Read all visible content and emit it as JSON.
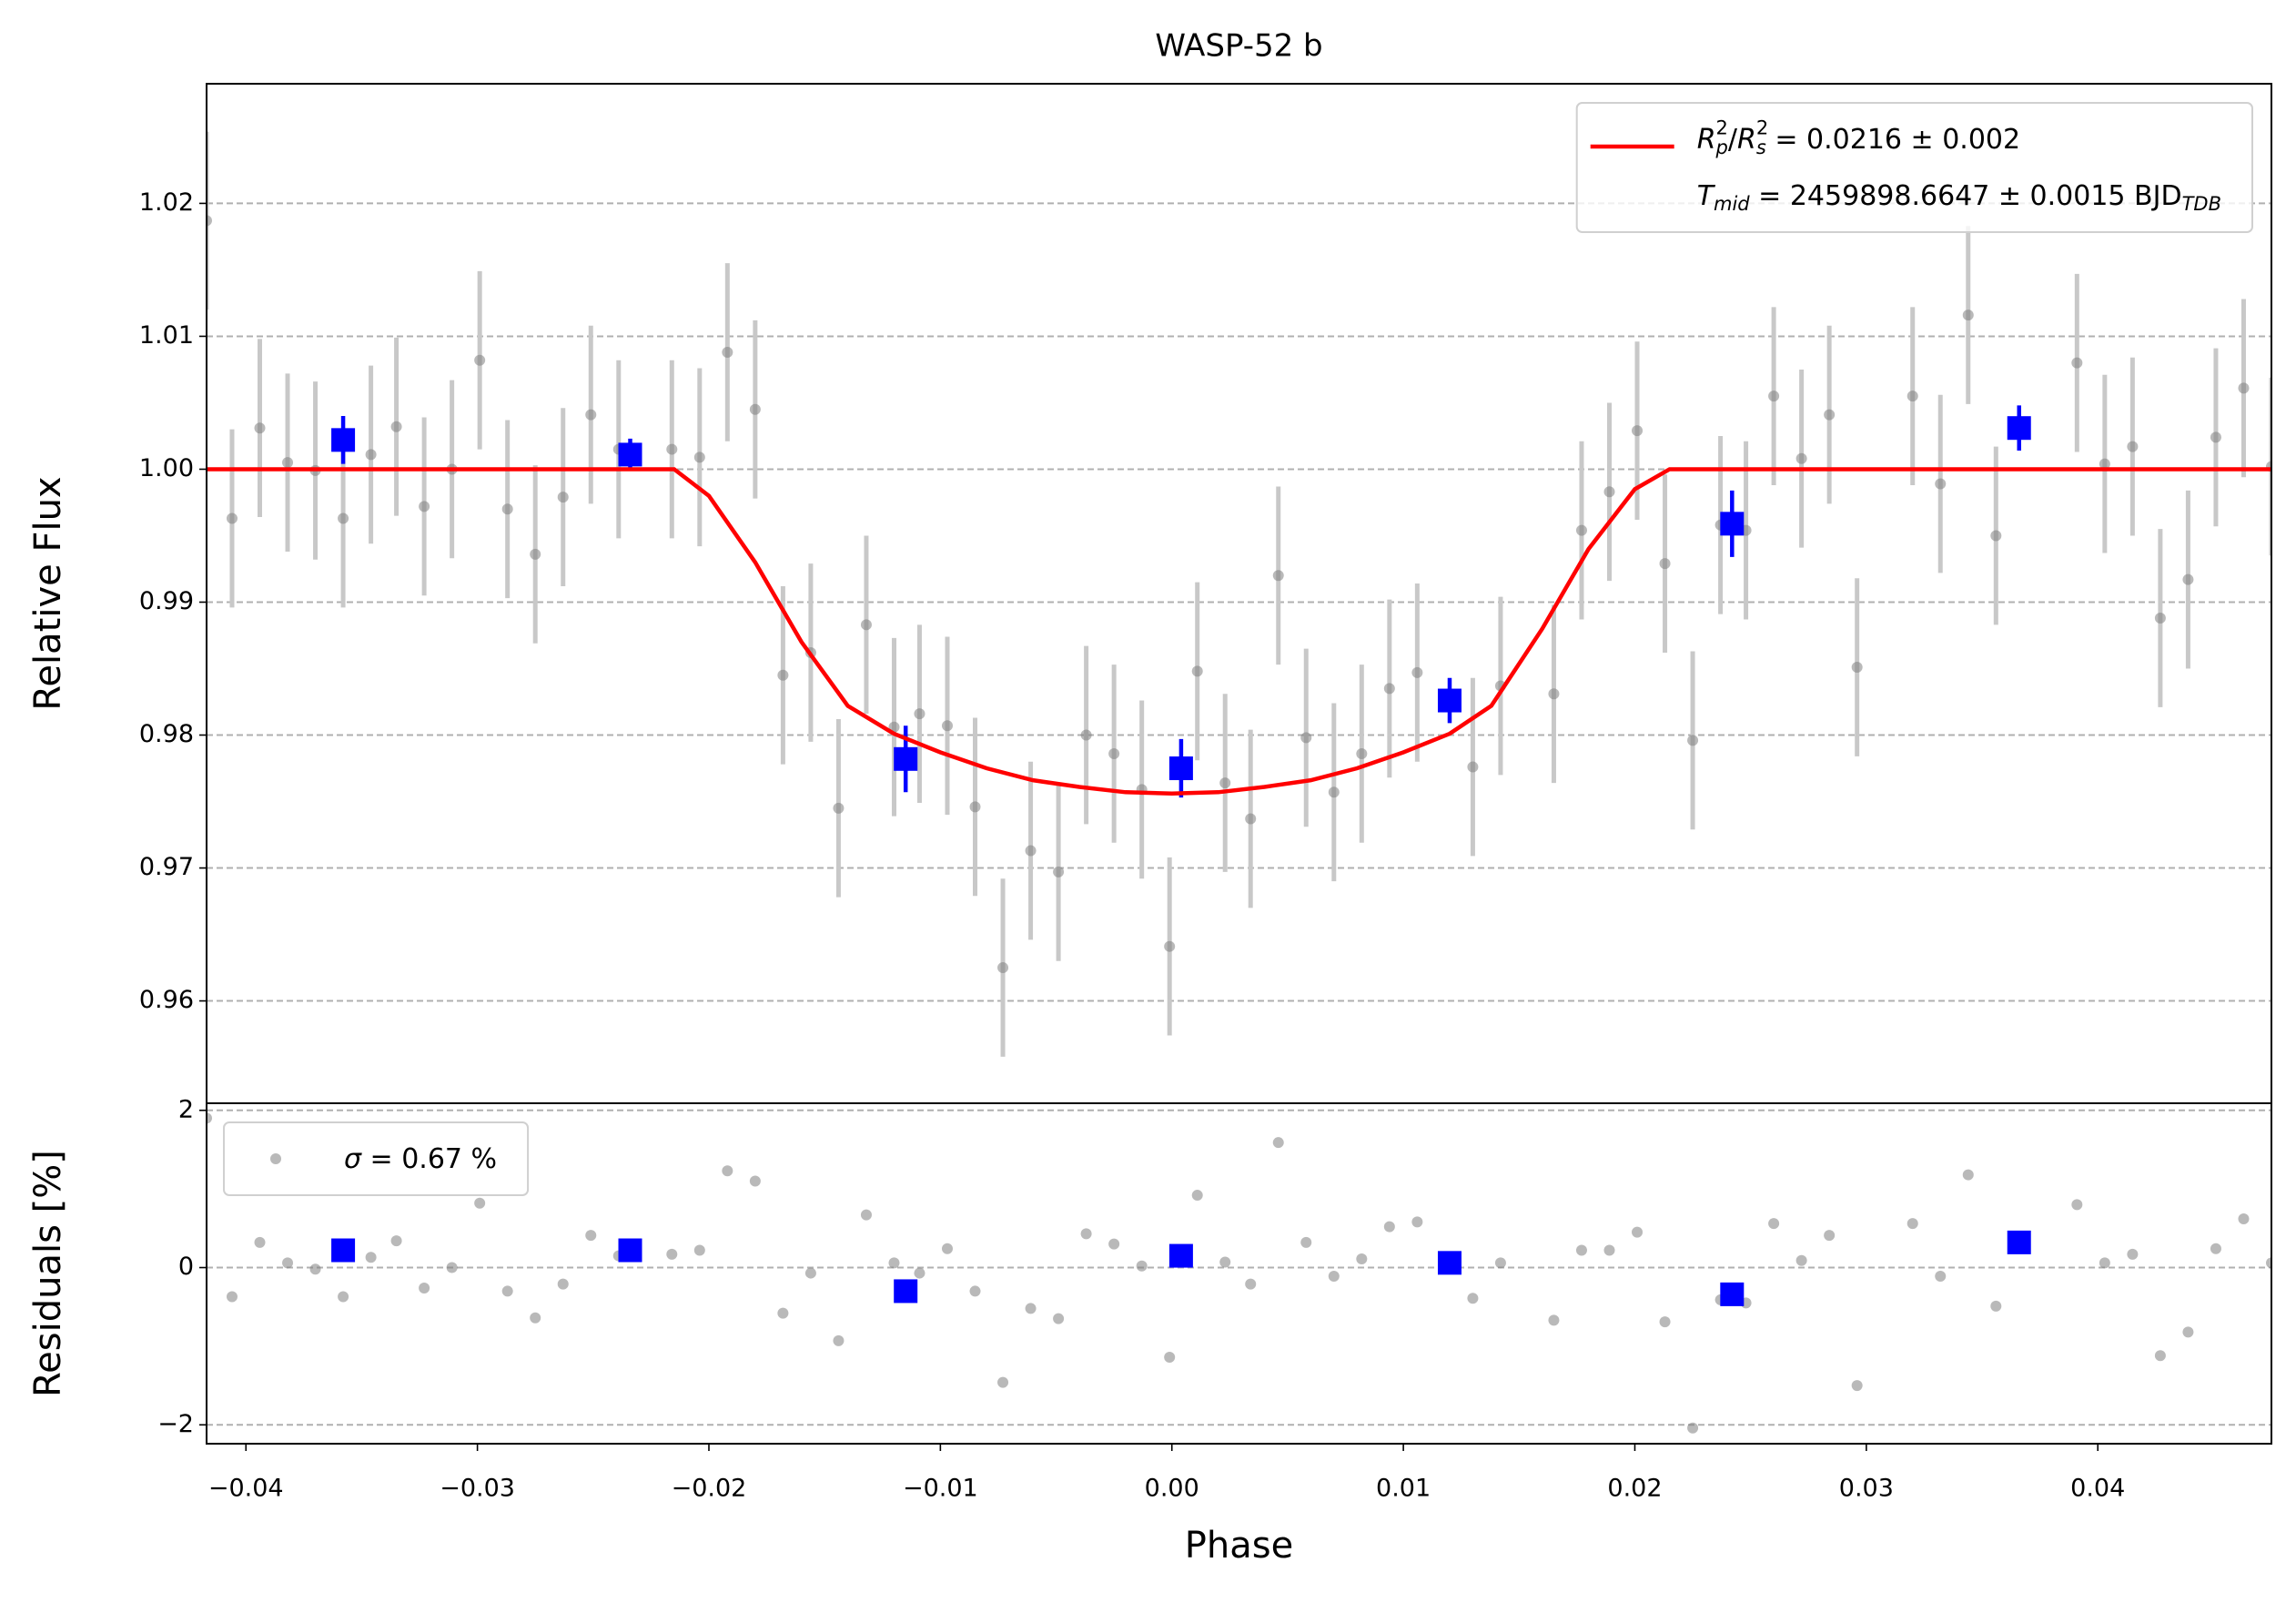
{
  "chart_data": [
    {
      "type": "scatter",
      "title": "WASP-52 b",
      "ylabel": "Relative Flux",
      "xlim": [
        -0.0417,
        0.0475
      ],
      "ylim": [
        0.9523,
        1.029
      ],
      "yticks": [
        0.96,
        0.97,
        0.98,
        0.99,
        {
          "value": 1.0,
          "label": "1.00"
        },
        1.01,
        1.02
      ],
      "grid": true,
      "legend": "upper right",
      "series": [
        {
          "type": "errorbar",
          "color": "#808080",
          "error": 0.0067,
          "x": [
            -0.0417,
            -0.0406,
            -0.0394,
            -0.0382,
            -0.037,
            -0.0358,
            -0.0346,
            -0.0335,
            -0.0323,
            -0.0311,
            -0.0299,
            -0.0287,
            -0.0275,
            -0.0263,
            -0.0251,
            -0.0239,
            -0.0216,
            -0.0204,
            -0.0192,
            -0.018,
            -0.0168,
            -0.0156,
            -0.0144,
            -0.0132,
            -0.012,
            -0.0109,
            -0.0097,
            -0.0085,
            -0.0073,
            -0.0061,
            -0.0049,
            -0.0037,
            -0.0025,
            -0.0013,
            -0.0001,
            0.0011,
            0.0023,
            0.0034,
            0.0046,
            0.0058,
            0.007,
            0.0082,
            0.0094,
            0.0106,
            0.013,
            0.0142,
            0.0165,
            0.0177,
            0.0189,
            0.0201,
            0.0213,
            0.0225,
            0.0237,
            0.0248,
            0.026,
            0.0272,
            0.0284,
            0.0296,
            0.032,
            0.0332,
            0.0344,
            0.0356,
            0.0391,
            0.0403,
            0.0415,
            0.0427,
            0.0439,
            0.0451,
            0.0463,
            0.0475
          ],
          "values": [
            1.0187,
            0.9963,
            1.0031,
            1.0005,
            0.9999,
            0.9963,
            1.0011,
            1.0032,
            0.9972,
            1.0,
            1.0082,
            0.997,
            0.9936,
            0.9979,
            1.0041,
            1.0015,
            1.0015,
            1.0009,
            1.0088,
            1.0045,
            0.9845,
            0.9862,
            0.9745,
            0.9883,
            0.9806,
            0.9816,
            0.9807,
            0.9746,
            0.9625,
            0.9713,
            0.9697,
            0.98,
            0.9786,
            0.9759,
            0.9641,
            0.9848,
            0.9764,
            0.9737,
            0.992,
            0.9798,
            0.9757,
            0.9786,
            0.9835,
            0.9847,
            0.9776,
            0.9837,
            0.9831,
            0.9954,
            0.9983,
            1.0029,
            0.9929,
            0.9796,
            0.9958,
            0.9954,
            1.0055,
            1.0008,
            1.0041,
            0.9851,
            1.0055,
            0.9989,
            1.0116,
            0.995,
            1.008,
            1.0004,
            1.0017,
            0.9888,
            0.9917,
            1.0024,
            1.0061,
            1.0002
          ]
        },
        {
          "type": "binned",
          "color": "#0000ff",
          "x": [
            -0.0358,
            -0.0234,
            -0.0115,
            0.0004,
            0.012,
            0.0242,
            0.0366
          ],
          "values": [
            1.0022,
            1.0011,
            0.9782,
            0.9775,
            0.9826,
            0.9959,
            1.0031
          ],
          "errors": [
            0.0018,
            0.0012,
            0.0025,
            0.0022,
            0.0017,
            0.0025,
            0.0017
          ]
        },
        {
          "type": "line",
          "color": "#ff0000",
          "name": [
            [
              {
                "text": "R",
                "style": "italic"
              },
              {
                "text": "2",
                "style": "sup"
              },
              {
                "text": "p",
                "style": "sub-italic"
              },
              {
                "text": "/",
                "style": "normal"
              },
              {
                "text": "R",
                "style": "italic"
              },
              {
                "text": "2",
                "style": "sup"
              },
              {
                "text": "s",
                "style": "sub-italic"
              },
              {
                "text": " = 0.0216 ± 0.002",
                "style": "normal"
              }
            ],
            [
              {
                "text": "T",
                "style": "italic"
              },
              {
                "text": "mid",
                "style": "sub-italic"
              },
              {
                "text": " = 2459898.6647 ± 0.0015 BJD",
                "style": "normal"
              },
              {
                "text": "TDB",
                "style": "sub-italic"
              }
            ]
          ],
          "x": [
            -0.0417,
            -0.0215,
            -0.02,
            -0.018,
            -0.016,
            -0.014,
            -0.012,
            -0.01,
            -0.008,
            -0.006,
            -0.004,
            -0.002,
            0.0,
            0.002,
            0.004,
            0.006,
            0.008,
            0.01,
            0.012,
            0.0138,
            0.016,
            0.018,
            0.02,
            0.0215,
            0.0475
          ],
          "values": [
            1.0,
            1.0,
            0.998,
            0.993,
            0.987,
            0.9822,
            0.9801,
            0.9787,
            0.9775,
            0.9766,
            0.9761,
            0.9757,
            0.9756,
            0.9757,
            0.9761,
            0.9766,
            0.9775,
            0.9787,
            0.9801,
            0.9822,
            0.988,
            0.994,
            0.9985,
            1.0,
            1.0
          ]
        }
      ]
    },
    {
      "type": "scatter",
      "ylabel": "Residuals [%]",
      "xlabel": "Phase",
      "xlim": [
        -0.0417,
        0.0475
      ],
      "ylim": [
        -2.24,
        2.09
      ],
      "xticks": [
        {
          "value": -0.04,
          "label": "−0.04"
        },
        {
          "value": -0.03,
          "label": "−0.03"
        },
        {
          "value": -0.02,
          "label": "−0.02"
        },
        {
          "value": -0.01,
          "label": "−0.01"
        },
        {
          "value": 0,
          "label": "0.00"
        },
        0.01,
        0.02,
        0.03,
        0.04
      ],
      "yticks": [
        {
          "value": -2,
          "label": "−2"
        },
        0,
        2
      ],
      "grid": true,
      "legend": "upper left",
      "series": [
        {
          "type": "points",
          "color": "#808080",
          "name": [
            [
              {
                "text": "σ",
                "style": "italic"
              },
              {
                "text": " = 0.67 %",
                "style": "normal"
              }
            ]
          ],
          "x": [
            -0.0417,
            -0.0406,
            -0.0394,
            -0.0382,
            -0.037,
            -0.0358,
            -0.0346,
            -0.0335,
            -0.0323,
            -0.0311,
            -0.0299,
            -0.0287,
            -0.0275,
            -0.0263,
            -0.0251,
            -0.0239,
            -0.0216,
            -0.0204,
            -0.0192,
            -0.018,
            -0.0168,
            -0.0156,
            -0.0144,
            -0.0132,
            -0.012,
            -0.0109,
            -0.0097,
            -0.0085,
            -0.0073,
            -0.0061,
            -0.0049,
            -0.0037,
            -0.0025,
            -0.0013,
            -0.0001,
            0.0011,
            0.0023,
            0.0034,
            0.0046,
            0.0058,
            0.007,
            0.0082,
            0.0094,
            0.0106,
            0.013,
            0.0142,
            0.0165,
            0.0177,
            0.0189,
            0.0201,
            0.0213,
            0.0225,
            0.0237,
            0.0248,
            0.026,
            0.0272,
            0.0284,
            0.0296,
            0.032,
            0.0332,
            0.0344,
            0.0356,
            0.0391,
            0.0403,
            0.0415,
            0.0427,
            0.0439,
            0.0451,
            0.0463,
            0.0475
          ],
          "values": [
            1.9,
            -0.37,
            0.32,
            0.06,
            -0.02,
            -0.37,
            0.13,
            0.34,
            -0.26,
            0,
            0.82,
            -0.3,
            -0.64,
            -0.21,
            0.41,
            0.15,
            0.17,
            0.22,
            1.23,
            1.1,
            -0.58,
            -0.07,
            -0.93,
            0.67,
            0.06,
            -0.07,
            0.24,
            -0.3,
            -1.46,
            -0.52,
            -0.65,
            0.43,
            0.3,
            0.02,
            -1.14,
            0.92,
            0.07,
            -0.21,
            1.59,
            0.32,
            -0.11,
            0.11,
            0.52,
            0.58,
            -0.39,
            0.06,
            -0.67,
            0.22,
            0.22,
            0.45,
            -0.69,
            -2.04,
            -0.41,
            -0.45,
            0.56,
            0.09,
            0.41,
            -1.5,
            0.56,
            -0.11,
            1.18,
            -0.49,
            0.8,
            0.06,
            0.17,
            -1.12,
            -0.82,
            0.24,
            0.62,
            0.06
          ]
        },
        {
          "type": "binned",
          "color": "#0000ff",
          "x": [
            -0.0358,
            -0.0234,
            -0.0115,
            0.0004,
            0.012,
            0.0242,
            0.0366
          ],
          "values": [
            0.22,
            0.22,
            -0.3,
            0.15,
            0.06,
            -0.34,
            0.32
          ]
        }
      ]
    }
  ]
}
